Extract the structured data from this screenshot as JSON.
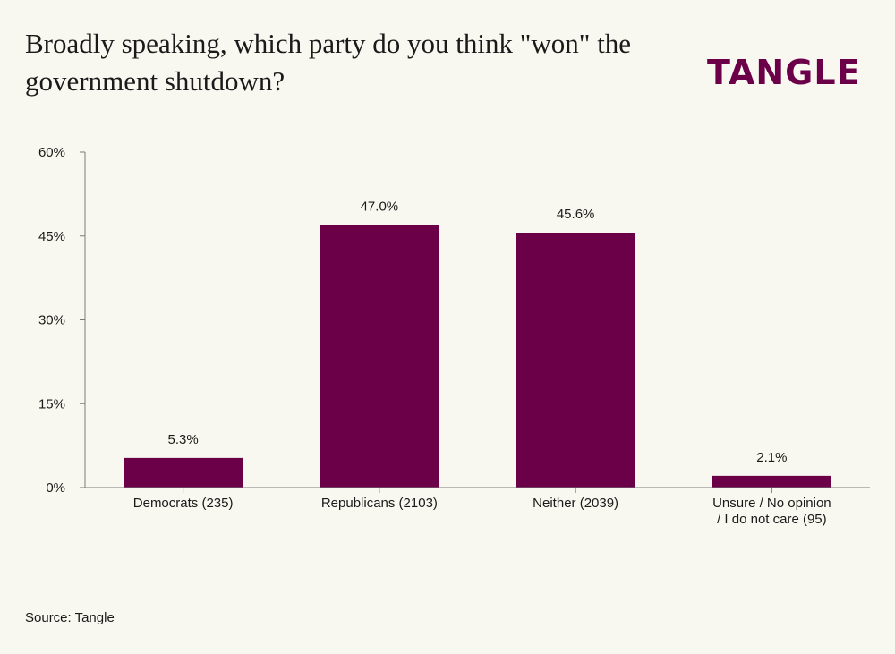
{
  "header": {
    "title": "Broadly speaking, which party do you think \"won\" the government shutdown?",
    "logo_text": "TANGLE",
    "logo_color": "#6b0049"
  },
  "footer": {
    "source": "Source: Tangle"
  },
  "chart_data": {
    "type": "bar",
    "title": "Broadly speaking, which party do you think \"won\" the government shutdown?",
    "xlabel": "",
    "ylabel": "",
    "categories": [
      [
        "Democrats (235)"
      ],
      [
        "Republicans (2103)"
      ],
      [
        "Neither (2039)"
      ],
      [
        "Unsure / No opinion",
        "/ I do not care (95)"
      ]
    ],
    "values": [
      5.3,
      47.0,
      45.6,
      2.1
    ],
    "value_labels": [
      "5.3%",
      "47.0%",
      "45.6%",
      "2.1%"
    ],
    "ylim": [
      0,
      60
    ],
    "yticks": [
      0,
      15,
      30,
      45,
      60
    ],
    "ytick_labels": [
      "0%",
      "15%",
      "30%",
      "45%",
      "60%"
    ],
    "grid": false,
    "legend": "none",
    "bar_color": "#6b0049",
    "background_color": "#f9f8f0"
  }
}
